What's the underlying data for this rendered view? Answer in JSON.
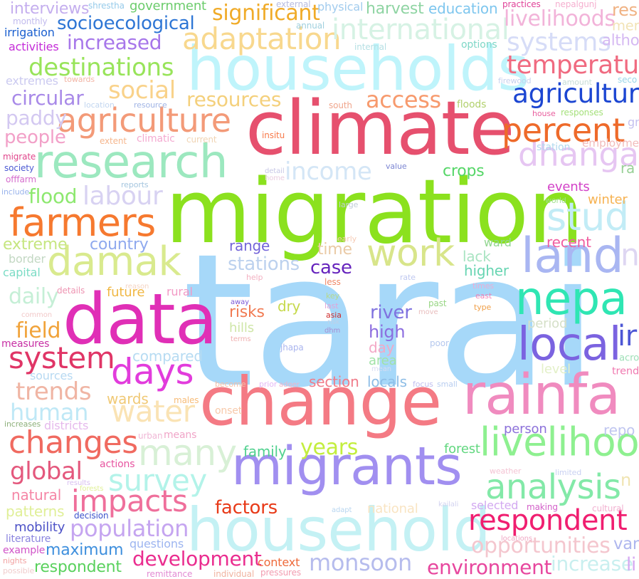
{
  "words": [
    {
      "text": "tarai",
      "color": "#a6d8f9"
    },
    {
      "text": "migration",
      "color": "#8be11e"
    },
    {
      "text": "climate",
      "color": "#e6506e"
    },
    {
      "text": "change",
      "color": "#f47a84"
    },
    {
      "text": "households",
      "color": "#bff4fb"
    },
    {
      "text": "data",
      "color": "#e02fb6"
    },
    {
      "text": "migrants",
      "color": "#a18ff0"
    },
    {
      "text": "household",
      "color": "#c4f1f4"
    },
    {
      "text": "rainfa",
      "color": "#f08bbf"
    },
    {
      "text": "research",
      "color": "#9ce8bf"
    },
    {
      "text": "farmers",
      "color": "#f6792f"
    },
    {
      "text": "damak",
      "color": "#d9ea8e"
    },
    {
      "text": "work",
      "color": "#d8e58a"
    },
    {
      "text": "agriculture",
      "color": "#f39a78"
    },
    {
      "text": "agricultur",
      "color": "#1c46d2"
    },
    {
      "text": "dhanga",
      "color": "#e6c6f2"
    },
    {
      "text": "livelihoo",
      "color": "#8ef090"
    },
    {
      "text": "local",
      "color": "#7b63e0"
    },
    {
      "text": "nepa",
      "color": "#2fe6b3"
    },
    {
      "text": "land",
      "color": "#a9b6f2"
    },
    {
      "text": "stud",
      "color": "#c2ecf6"
    },
    {
      "text": "percent",
      "color": "#ee6a2a"
    },
    {
      "text": "days",
      "color": "#e23cdc"
    },
    {
      "text": "system",
      "color": "#e03566"
    },
    {
      "text": "changes",
      "color": "#f06a60"
    },
    {
      "text": "many",
      "color": "#d8f0d6"
    },
    {
      "text": "survey",
      "color": "#b3f3e9"
    },
    {
      "text": "analysis",
      "color": "#83e9a8"
    },
    {
      "text": "impacts",
      "color": "#ef6f9b"
    },
    {
      "text": "respondent",
      "color": "#f01e70"
    },
    {
      "text": "adaptation",
      "color": "#f8d88e"
    },
    {
      "text": "international",
      "color": "#d6f2e4"
    },
    {
      "text": "temperatu",
      "color": "#f06a80"
    },
    {
      "text": "systems",
      "color": "#d6dcf7"
    },
    {
      "text": "livelihoods",
      "color": "#f2b3d9"
    },
    {
      "text": "significant",
      "color": "#f0ab28"
    },
    {
      "text": "socioecological",
      "color": "#2e76d5"
    },
    {
      "text": "increased",
      "color": "#a777ea"
    },
    {
      "text": "destinations",
      "color": "#98e45a"
    },
    {
      "text": "social",
      "color": "#f9d28a"
    },
    {
      "text": "circular",
      "color": "#a889e8"
    },
    {
      "text": "paddy",
      "color": "#d3c8f1"
    },
    {
      "text": "people",
      "color": "#f2a0c8"
    },
    {
      "text": "labour",
      "color": "#d8d2f2"
    },
    {
      "text": "income",
      "color": "#d4e6f6"
    },
    {
      "text": "access",
      "color": "#f79a6d"
    },
    {
      "text": "resources",
      "color": "#f4d07c"
    },
    {
      "text": "flood",
      "color": "#8de86f"
    },
    {
      "text": "extreme",
      "color": "#c6e680"
    },
    {
      "text": "country",
      "color": "#8fa9ee"
    },
    {
      "text": "global",
      "color": "#e4587d"
    },
    {
      "text": "human",
      "color": "#bfe8f6"
    },
    {
      "text": "water",
      "color": "#fae3b4"
    },
    {
      "text": "trends",
      "color": "#f0b5a4"
    },
    {
      "text": "daily",
      "color": "#c5efd6"
    },
    {
      "text": "field",
      "color": "#f1a33a"
    },
    {
      "text": "population",
      "color": "#c5a5f0"
    },
    {
      "text": "development",
      "color": "#ea2d8f"
    },
    {
      "text": "monsoon",
      "color": "#b6bced"
    },
    {
      "text": "environment",
      "color": "#e7479e"
    },
    {
      "text": "opportunities",
      "color": "#f4c6ce"
    },
    {
      "text": "increase",
      "color": "#c9efef"
    },
    {
      "text": "years",
      "color": "#c3ee3e"
    },
    {
      "text": "factors",
      "color": "#e83a18"
    },
    {
      "text": "maximum",
      "color": "#3e8fdd"
    },
    {
      "text": "respondent",
      "color": "#59d15d"
    },
    {
      "text": "case",
      "color": "#6624bd"
    },
    {
      "text": "river",
      "color": "#7f72df"
    },
    {
      "text": "high",
      "color": "#8c6ddf"
    },
    {
      "text": "crops",
      "color": "#55d667"
    },
    {
      "text": "recent",
      "color": "#f05d9f"
    },
    {
      "text": "events",
      "color": "#d342c8"
    },
    {
      "text": "winter",
      "color": "#f6b252"
    },
    {
      "text": "period",
      "color": "#d5e0c8"
    },
    {
      "text": "person",
      "color": "#8c71da"
    },
    {
      "text": "family",
      "color": "#51d18f"
    },
    {
      "text": "forest",
      "color": "#61d77f"
    },
    {
      "text": "compared",
      "color": "#b6dbf2"
    },
    {
      "text": "wards",
      "color": "#f0c976"
    },
    {
      "text": "stations",
      "color": "#bcd1ee"
    },
    {
      "text": "range",
      "color": "#7364d8"
    },
    {
      "text": "time",
      "color": "#eacaa6"
    },
    {
      "text": "section",
      "color": "#f07c8a"
    },
    {
      "text": "locals",
      "color": "#8dbde6"
    },
    {
      "text": "lack",
      "color": "#a9e4c2"
    },
    {
      "text": "higher",
      "color": "#68d5b2"
    },
    {
      "text": "ward",
      "color": "#92d690"
    },
    {
      "text": "harvest",
      "color": "#8fd4a3"
    },
    {
      "text": "education",
      "color": "#7ec6ee"
    },
    {
      "text": "interviews",
      "color": "#c4aeee"
    },
    {
      "text": "government",
      "color": "#6ccc6c"
    },
    {
      "text": "physical",
      "color": "#a2ccee"
    },
    {
      "text": "irrigation",
      "color": "#1a5fcf"
    },
    {
      "text": "activities",
      "color": "#c42cd8"
    },
    {
      "text": "extremes",
      "color": "#cbcaf0"
    },
    {
      "text": "measures",
      "color": "#c72fa4"
    },
    {
      "text": "mobility",
      "color": "#4d52c7"
    },
    {
      "text": "natural",
      "color": "#f586a6"
    },
    {
      "text": "patterns",
      "color": "#e0ef98"
    },
    {
      "text": "future",
      "color": "#f0b743"
    },
    {
      "text": "rural",
      "color": "#f299c5"
    },
    {
      "text": "risks",
      "color": "#f17b53"
    },
    {
      "text": "dry",
      "color": "#c6d94b"
    },
    {
      "text": "hills",
      "color": "#cfe6a7"
    },
    {
      "text": "day",
      "color": "#f3a8c6"
    },
    {
      "text": "area",
      "color": "#a1e2a7"
    },
    {
      "text": "districts",
      "color": "#e5b9ec"
    },
    {
      "text": "sources",
      "color": "#b7d9f2"
    },
    {
      "text": "capital",
      "color": "#7bdcc5"
    },
    {
      "text": "border",
      "color": "#c3d8c3"
    },
    {
      "text": "details",
      "color": "#ee94b2"
    },
    {
      "text": "actions",
      "color": "#e754a0"
    },
    {
      "text": "means",
      "color": "#f0a4c7"
    },
    {
      "text": "questions",
      "color": "#9db5f0"
    },
    {
      "text": "national",
      "color": "#f9e4c2"
    },
    {
      "text": "selected",
      "color": "#d3a9f1"
    },
    {
      "text": "context",
      "color": "#ee6a3a"
    },
    {
      "text": "literature",
      "color": "#8b85df"
    },
    {
      "text": "example",
      "color": "#d052c8"
    },
    {
      "text": "onset",
      "color": "#f7c9aa"
    },
    {
      "text": "males",
      "color": "#f7bc78"
    },
    {
      "text": "urban",
      "color": "#f0b7d6"
    },
    {
      "text": "decision",
      "color": "#3b52cb"
    },
    {
      "text": "pressures",
      "color": "#f29db0"
    },
    {
      "text": "remittance",
      "color": "#e28bd3"
    },
    {
      "text": "individual",
      "color": "#f0b3a0"
    },
    {
      "text": "nights",
      "color": "#f2a2a2"
    },
    {
      "text": "possible",
      "color": "#f0cccc"
    },
    {
      "text": "offfarm",
      "color": "#d56ccd"
    },
    {
      "text": "increases",
      "color": "#8db07b"
    },
    {
      "text": "migrate",
      "color": "#e0468c"
    },
    {
      "text": "society",
      "color": "#4c5ad3"
    },
    {
      "text": "include",
      "color": "#9ab4ec"
    },
    {
      "text": "shrestha",
      "color": "#96cbea"
    },
    {
      "text": "external",
      "color": "#b8bce0"
    },
    {
      "text": "annual",
      "color": "#a0d0de"
    },
    {
      "text": "internal",
      "color": "#b6e0e4"
    },
    {
      "text": "options",
      "color": "#7fd7c7"
    },
    {
      "text": "practices",
      "color": "#e04298"
    },
    {
      "text": "nepalgunj",
      "color": "#f5afcf"
    },
    {
      "text": "monthly",
      "color": "#c2bbee"
    },
    {
      "text": "towards",
      "color": "#f2b5a5"
    },
    {
      "text": "location",
      "color": "#c2d6f0"
    },
    {
      "text": "resource",
      "color": "#a0b4e5"
    },
    {
      "text": "extent",
      "color": "#f6b78e"
    },
    {
      "text": "climatic",
      "color": "#f4aad1"
    },
    {
      "text": "current",
      "color": "#f0d4b4"
    },
    {
      "text": "insitu",
      "color": "#f77a4a"
    },
    {
      "text": "south",
      "color": "#f0a68d"
    },
    {
      "text": "less",
      "color": "#f08868"
    },
    {
      "text": "floods",
      "color": "#b2d16e"
    },
    {
      "text": "firewood",
      "color": "#c6d1ee"
    },
    {
      "text": "amount",
      "color": "#c6dcd6"
    },
    {
      "text": "house",
      "color": "#e85f9e"
    },
    {
      "text": "responses",
      "color": "#a5e07b"
    },
    {
      "text": "station",
      "color": "#b2d9ee"
    },
    {
      "text": "employme",
      "color": "#f2bcbc"
    },
    {
      "text": "value",
      "color": "#7b85d2"
    },
    {
      "text": "detail",
      "color": "#c8c8e6"
    },
    {
      "text": "home",
      "color": "#eacde0"
    },
    {
      "text": "reports",
      "color": "#a5c6df"
    },
    {
      "text": "large",
      "color": "#c1ced9"
    },
    {
      "text": "early",
      "color": "#f6cbb5"
    },
    {
      "text": "help",
      "color": "#f3b1c2"
    },
    {
      "text": "rate",
      "color": "#bfc8f0"
    },
    {
      "text": "world",
      "color": "#9fdf8b"
    },
    {
      "text": "times",
      "color": "#eaaed5"
    },
    {
      "text": "east",
      "color": "#f083b6"
    },
    {
      "text": "type",
      "color": "#f0a04a"
    },
    {
      "text": "away",
      "color": "#7b57d5"
    },
    {
      "text": "key",
      "color": "#b6d98c"
    },
    {
      "text": "last",
      "color": "#e0a5d9"
    },
    {
      "text": "risk",
      "color": "#bed1e8"
    },
    {
      "text": "asia",
      "color": "#cf2d2d"
    },
    {
      "text": "dhm",
      "color": "#a68ed3"
    },
    {
      "text": "past",
      "color": "#98d684"
    },
    {
      "text": "move",
      "color": "#e9bebe"
    },
    {
      "text": "common",
      "color": "#f2c9c9"
    },
    {
      "text": "reason",
      "color": "#f5d5c4"
    },
    {
      "text": "terms",
      "color": "#f0b0b0"
    },
    {
      "text": "jhapa",
      "color": "#aab5ee"
    },
    {
      "text": "poor",
      "color": "#b5c8ee"
    },
    {
      "text": "become",
      "color": "#f4c0a8"
    },
    {
      "text": "prior",
      "color": "#e4b7f5"
    },
    {
      "text": "adger",
      "color": "#f0b3c9"
    },
    {
      "text": "focus",
      "color": "#c0bff0"
    },
    {
      "text": "small",
      "color": "#b8cdf0"
    },
    {
      "text": "mean",
      "color": "#d8dcf2"
    },
    {
      "text": "weather",
      "color": "#f4c4d4"
    },
    {
      "text": "limited",
      "color": "#c9d1f2"
    },
    {
      "text": "making",
      "color": "#d25fc8"
    },
    {
      "text": "kailali",
      "color": "#d3d3f0"
    },
    {
      "text": "adapt",
      "color": "#b8d6f0"
    },
    {
      "text": "locations",
      "color": "#f0a8c4"
    },
    {
      "text": "cultural",
      "color": "#f2b0d0"
    },
    {
      "text": "results",
      "color": "#d8bff0"
    },
    {
      "text": "forests",
      "color": "#e0f098"
    },
    {
      "text": "ir",
      "color": "#4d57d5"
    },
    {
      "text": "acro",
      "color": "#9fe0b8"
    },
    {
      "text": "trend",
      "color": "#f07ab0"
    },
    {
      "text": "repo",
      "color": "#c0c6f0"
    },
    {
      "text": "n",
      "color": "#f0e4b2"
    },
    {
      "text": "var",
      "color": "#aeb6ee"
    },
    {
      "text": "li",
      "color": "#d6a9f2"
    },
    {
      "text": "n",
      "color": "#ded6f2"
    },
    {
      "text": "res",
      "color": "#f0b283"
    },
    {
      "text": "mer",
      "color": "#f2e3b6"
    },
    {
      "text": "altho",
      "color": "#d5b8f2"
    },
    {
      "text": "seco",
      "color": "#9bd6e8"
    },
    {
      "text": "level",
      "color": "#e3f0c8"
    },
    {
      "text": "ra",
      "color": "#98d096"
    },
    {
      "text": "gr",
      "color": "#c5c1ef"
    }
  ]
}
